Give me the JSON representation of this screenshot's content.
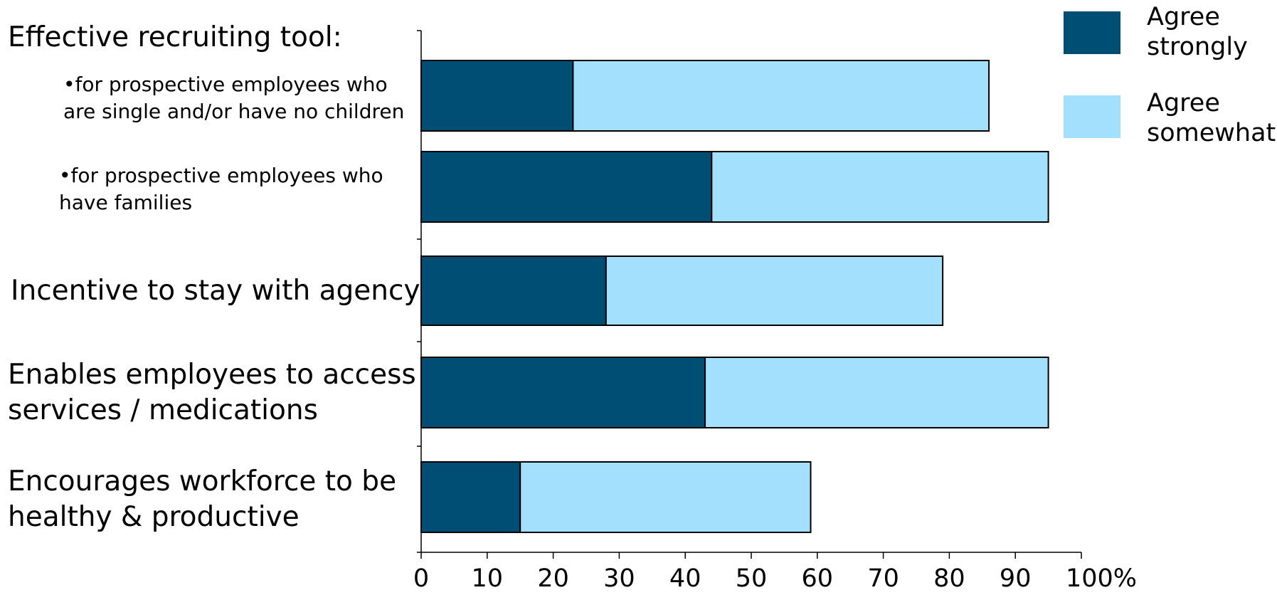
{
  "chart_data": {
    "type": "bar",
    "orientation": "horizontal",
    "stacked": true,
    "group_heading": "Effective recruiting tool:",
    "categories": [
      [
        "•for prospective employees who",
        "are single and/or have no children"
      ],
      [
        "•for prospective employees who",
        "have families"
      ],
      [
        "Incentive to stay with agency"
      ],
      [
        "Enables employees to access",
        "services / medications"
      ],
      [
        "Encourages workforce to be",
        "healthy & productive"
      ]
    ],
    "series": [
      {
        "name": "Agree strongly",
        "values": [
          23,
          44,
          28,
          43,
          15
        ]
      },
      {
        "name": "Agree somewhat",
        "values": [
          63,
          51,
          51,
          52,
          44
        ]
      }
    ],
    "xlim": [
      0,
      100
    ],
    "xticks": [
      "0",
      "10",
      "20",
      "30",
      "40",
      "50",
      "60",
      "70",
      "80",
      "90",
      "100%"
    ],
    "legend": {
      "position": "top-right",
      "entries": [
        {
          "lines": [
            "Agree",
            "strongly"
          ],
          "color": "#004e74"
        },
        {
          "lines": [
            "Agree",
            "somewhat"
          ],
          "color": "#a3e0fd"
        }
      ]
    },
    "colors": {
      "strong": "#004e74",
      "somewhat": "#a3e0fd",
      "border": "#000000"
    },
    "grid": false
  }
}
